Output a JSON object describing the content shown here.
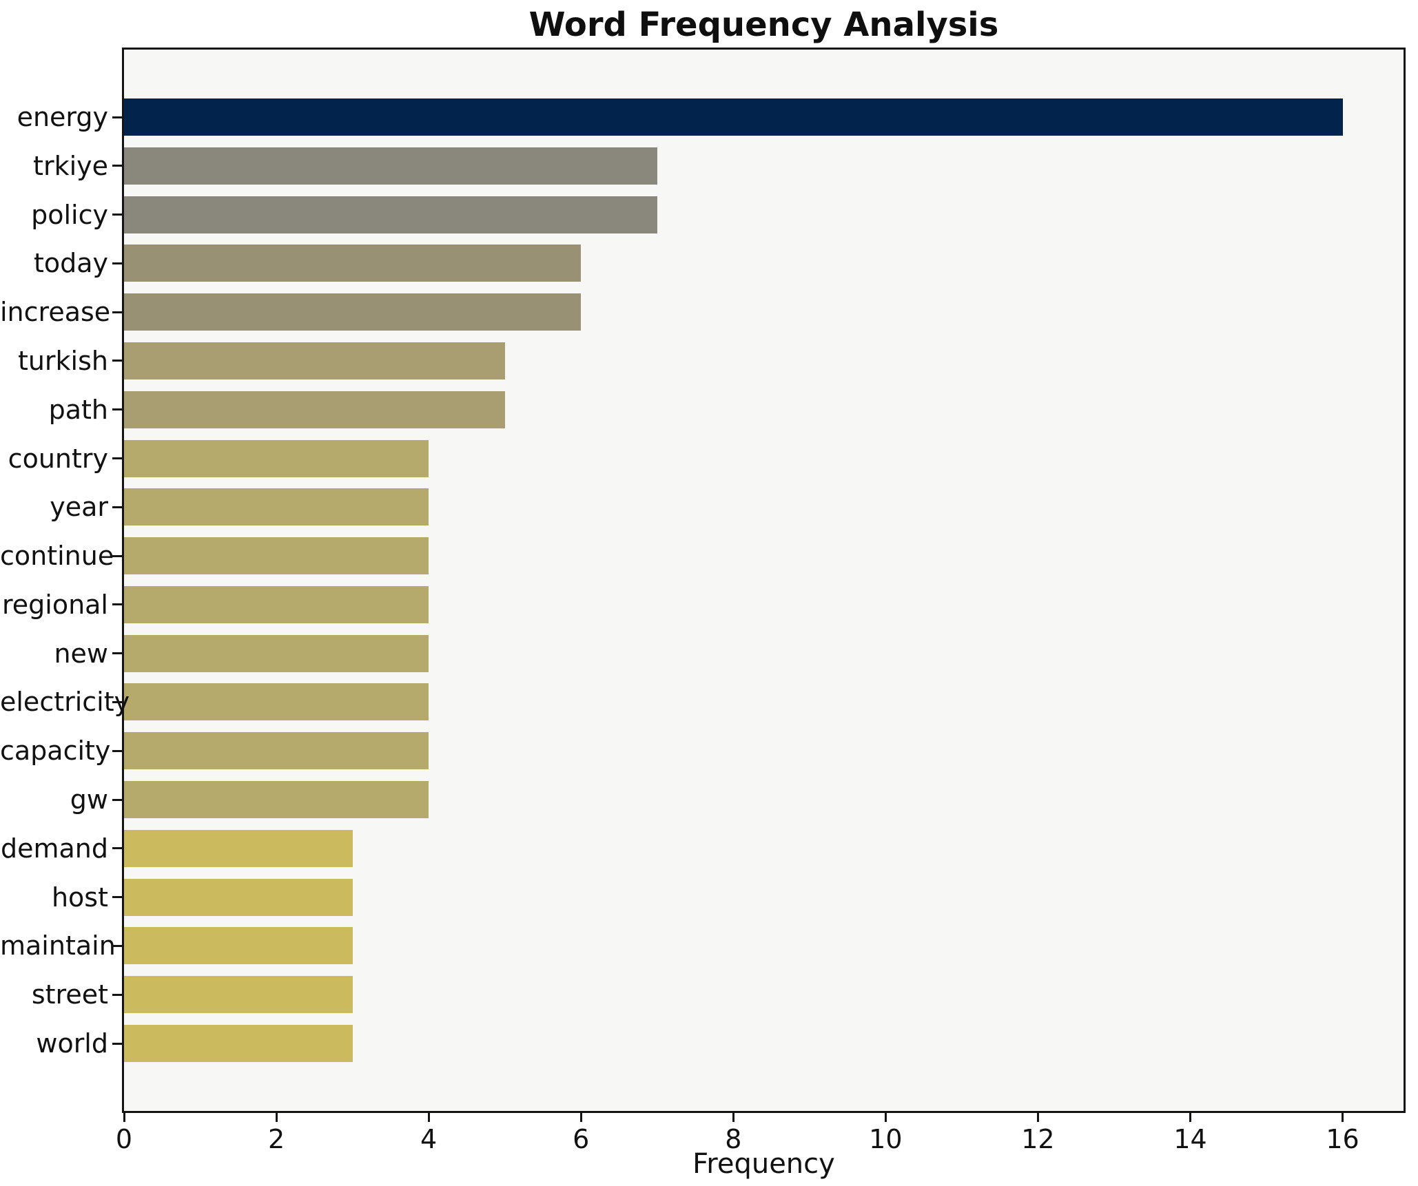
{
  "chart_data": {
    "type": "bar",
    "orientation": "horizontal",
    "title": "Word Frequency Analysis",
    "xlabel": "Frequency",
    "ylabel": "",
    "categories": [
      "energy",
      "trkiye",
      "policy",
      "today",
      "increase",
      "turkish",
      "path",
      "country",
      "year",
      "continue",
      "regional",
      "new",
      "electricity",
      "capacity",
      "gw",
      "demand",
      "host",
      "maintain",
      "street",
      "world"
    ],
    "values": [
      16,
      7,
      7,
      6,
      6,
      5,
      5,
      4,
      4,
      4,
      4,
      4,
      4,
      4,
      4,
      3,
      3,
      3,
      3,
      3
    ],
    "bar_colors": [
      "#02234c",
      "#8a887c",
      "#8a887c",
      "#999174",
      "#999174",
      "#a99e71",
      "#a99e71",
      "#b5aa6b",
      "#b5aa6b",
      "#b5aa6b",
      "#b5aa6b",
      "#b5aa6b",
      "#b5aa6b",
      "#b5aa6b",
      "#b5aa6b",
      "#ccba5f",
      "#ccba5f",
      "#ccba5f",
      "#ccba5f",
      "#ccba5f"
    ],
    "xticks": [
      0,
      2,
      4,
      6,
      8,
      10,
      12,
      14,
      16
    ],
    "xlim": [
      0,
      16.8
    ],
    "grid": false,
    "legend": null,
    "style": {
      "figure_bg": "#ffffff",
      "plot_bg": "#f7f7f6",
      "spine_color": "#141414",
      "text_color": "#111111"
    }
  }
}
